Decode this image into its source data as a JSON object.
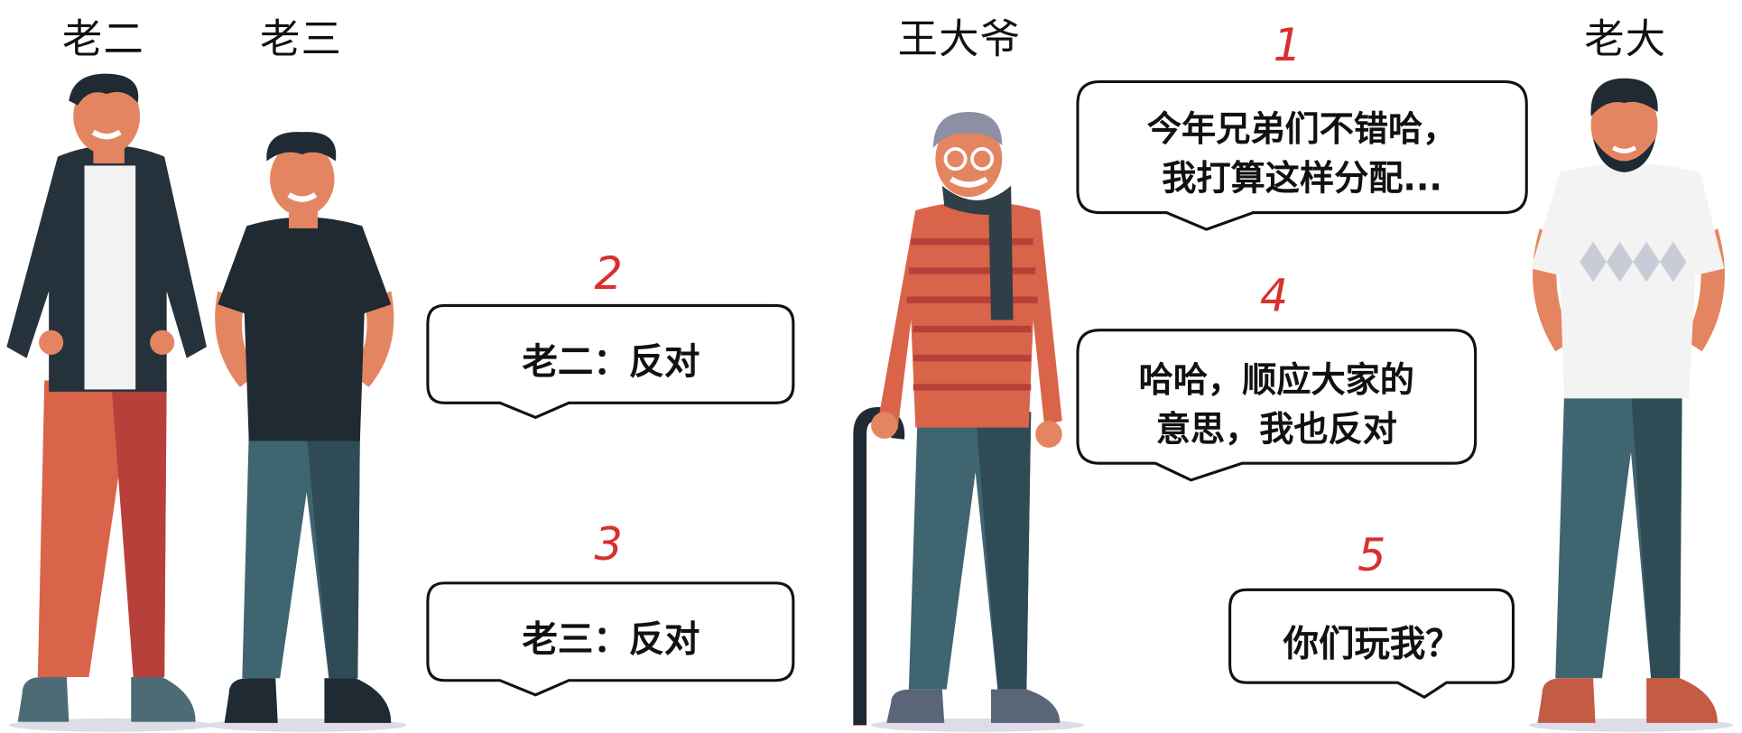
{
  "names": {
    "lao_er": "老二",
    "lao_san": "老三",
    "wang_daye": "王大爷",
    "lao_da": "老大"
  },
  "bubbles": [
    {
      "number": "1",
      "lines": [
        "今年兄弟们不错哈，",
        "我打算这样分配..."
      ]
    },
    {
      "number": "2",
      "lines": [
        "老二：反对"
      ]
    },
    {
      "number": "3",
      "lines": [
        "老三：反对"
      ]
    },
    {
      "number": "4",
      "lines": [
        "哈哈，顺应大家的",
        "意思，我也反对"
      ]
    },
    {
      "number": "5",
      "lines": [
        "你们玩我？"
      ]
    }
  ],
  "colors": {
    "number_red": "#d8302a",
    "skin": "#e48561",
    "dark": "#1f2a33",
    "teal_pants": "#3f6570",
    "orange_stripe": "#d9644a"
  }
}
